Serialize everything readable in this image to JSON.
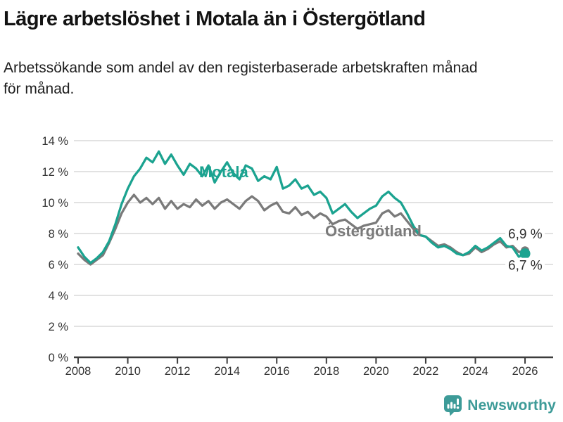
{
  "header": {
    "title": "Lägre arbetslöshet i Motala än i Östergötland",
    "subtitle": "Arbetssökande som andel av den registerbaserade arbetskraften månad för månad."
  },
  "chart_data": {
    "type": "line",
    "title": "Lägre arbetslöshet i Motala än i Östergötland",
    "subtitle": "Arbetssökande som andel av den registerbaserade arbetskraften månad för månad.",
    "unit": "%",
    "grid": "horizontal",
    "legend_position": "inline-labels",
    "x_start": 2008,
    "x_step": 0.25,
    "xlim": [
      2008,
      2026
    ],
    "ylim": [
      0,
      14
    ],
    "y_ticks": [
      {
        "value": 0,
        "label": "0 %"
      },
      {
        "value": 2,
        "label": "2 %"
      },
      {
        "value": 4,
        "label": "4 %"
      },
      {
        "value": 6,
        "label": "6 %"
      },
      {
        "value": 8,
        "label": "8 %"
      },
      {
        "value": 10,
        "label": "10 %"
      },
      {
        "value": 12,
        "label": "12 %"
      },
      {
        "value": 14,
        "label": "14 %"
      }
    ],
    "x_ticks": [
      {
        "value": 2008,
        "label": "2008"
      },
      {
        "value": 2010,
        "label": "2010"
      },
      {
        "value": 2012,
        "label": "2012"
      },
      {
        "value": 2014,
        "label": "2014"
      },
      {
        "value": 2016,
        "label": "2016"
      },
      {
        "value": 2018,
        "label": "2018"
      },
      {
        "value": 2020,
        "label": "2020"
      },
      {
        "value": 2022,
        "label": "2022"
      },
      {
        "value": 2024,
        "label": "2024"
      },
      {
        "value": 2026,
        "label": "2026"
      }
    ],
    "series": [
      {
        "name": "Motala",
        "color": "#1ba390",
        "end_label": "6,7 %",
        "end_value": 6.7,
        "values": [
          7.1,
          6.5,
          6.1,
          6.4,
          6.8,
          7.5,
          8.6,
          9.9,
          10.9,
          11.7,
          12.2,
          12.9,
          12.6,
          13.3,
          12.5,
          13.1,
          12.4,
          11.8,
          12.5,
          12.2,
          11.7,
          12.4,
          11.3,
          12.0,
          12.6,
          11.9,
          11.5,
          12.4,
          12.2,
          11.4,
          11.7,
          11.5,
          12.3,
          10.9,
          11.1,
          11.5,
          10.9,
          11.1,
          10.5,
          10.7,
          10.3,
          9.3,
          9.6,
          9.9,
          9.4,
          9.0,
          9.3,
          9.6,
          9.8,
          10.4,
          10.7,
          10.3,
          10.0,
          9.3,
          8.5,
          7.9,
          7.8,
          7.4,
          7.1,
          7.2,
          7.0,
          6.7,
          6.6,
          6.8,
          7.2,
          6.9,
          7.1,
          7.4,
          7.7,
          7.2,
          7.1,
          6.5,
          6.7
        ]
      },
      {
        "name": "Östergötland",
        "color": "#7a7a7a",
        "end_label": "6,9 %",
        "end_value": 6.9,
        "values": [
          6.7,
          6.3,
          6.0,
          6.3,
          6.6,
          7.4,
          8.3,
          9.3,
          10.0,
          10.5,
          10.0,
          10.3,
          9.9,
          10.3,
          9.6,
          10.1,
          9.6,
          9.9,
          9.7,
          10.2,
          9.8,
          10.1,
          9.6,
          10.0,
          10.2,
          9.9,
          9.6,
          10.1,
          10.4,
          10.1,
          9.5,
          9.8,
          10.0,
          9.4,
          9.3,
          9.7,
          9.2,
          9.4,
          9.0,
          9.3,
          9.1,
          8.6,
          8.8,
          8.9,
          8.6,
          8.3,
          8.5,
          8.6,
          8.7,
          9.3,
          9.5,
          9.1,
          9.3,
          8.8,
          8.3,
          7.9,
          7.8,
          7.5,
          7.2,
          7.3,
          7.1,
          6.8,
          6.6,
          6.7,
          7.1,
          6.8,
          7.0,
          7.3,
          7.5,
          7.1,
          7.2,
          6.8,
          6.9
        ]
      }
    ],
    "colors": {
      "grid": "#d9d9d9",
      "axis": "#3c3c3c",
      "tick_text": "#333333",
      "end_label_text": "#2e2e2e"
    }
  },
  "footer": {
    "brand": "Newsworthy",
    "brand_color": "#3d9b98",
    "logo_icon": "newsworthy-speech-bubble-bars-icon"
  }
}
